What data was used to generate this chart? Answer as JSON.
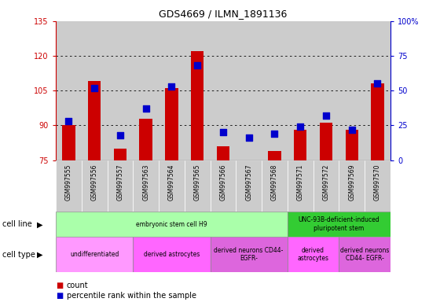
{
  "title": "GDS4669 / ILMN_1891136",
  "samples": [
    "GSM997555",
    "GSM997556",
    "GSM997557",
    "GSM997563",
    "GSM997564",
    "GSM997565",
    "GSM997566",
    "GSM997567",
    "GSM997568",
    "GSM997571",
    "GSM997572",
    "GSM997569",
    "GSM997570"
  ],
  "count_values": [
    90,
    109,
    80,
    93,
    106,
    122,
    81,
    75,
    79,
    88,
    91,
    88,
    108
  ],
  "percentile_values": [
    28,
    52,
    18,
    37,
    53,
    68,
    20,
    16,
    19,
    24,
    32,
    22,
    55
  ],
  "ylim_left": [
    75,
    135
  ],
  "ylim_right": [
    0,
    100
  ],
  "yticks_left": [
    75,
    90,
    105,
    120,
    135
  ],
  "yticks_right": [
    0,
    25,
    50,
    75,
    100
  ],
  "ytick_labels_right": [
    "0",
    "25",
    "50",
    "75",
    "100%"
  ],
  "bar_color": "#cc0000",
  "dot_color": "#0000cc",
  "bar_width": 0.5,
  "dot_size": 30,
  "cell_line_row": {
    "label": "cell line",
    "groups": [
      {
        "text": "embryonic stem cell H9",
        "start": 0,
        "end": 8,
        "color": "#aaffaa"
      },
      {
        "text": "UNC-93B-deficient-induced\npluripotent stem",
        "start": 9,
        "end": 12,
        "color": "#33cc33"
      }
    ]
  },
  "cell_type_row": {
    "label": "cell type",
    "groups": [
      {
        "text": "undifferentiated",
        "start": 0,
        "end": 2,
        "color": "#ff99ff"
      },
      {
        "text": "derived astrocytes",
        "start": 3,
        "end": 5,
        "color": "#ff66ff"
      },
      {
        "text": "derived neurons CD44-\nEGFR-",
        "start": 6,
        "end": 8,
        "color": "#dd66dd"
      },
      {
        "text": "derived\nastrocytes",
        "start": 9,
        "end": 10,
        "color": "#ff66ff"
      },
      {
        "text": "derived neurons\nCD44- EGFR-",
        "start": 11,
        "end": 12,
        "color": "#dd66dd"
      }
    ]
  },
  "xtick_bg_color": "#cccccc",
  "grid_color": "#000000",
  "left_axis_color": "#cc0000",
  "right_axis_color": "#0000cc",
  "left_spine_color": "#000000",
  "right_spine_color": "#000000"
}
